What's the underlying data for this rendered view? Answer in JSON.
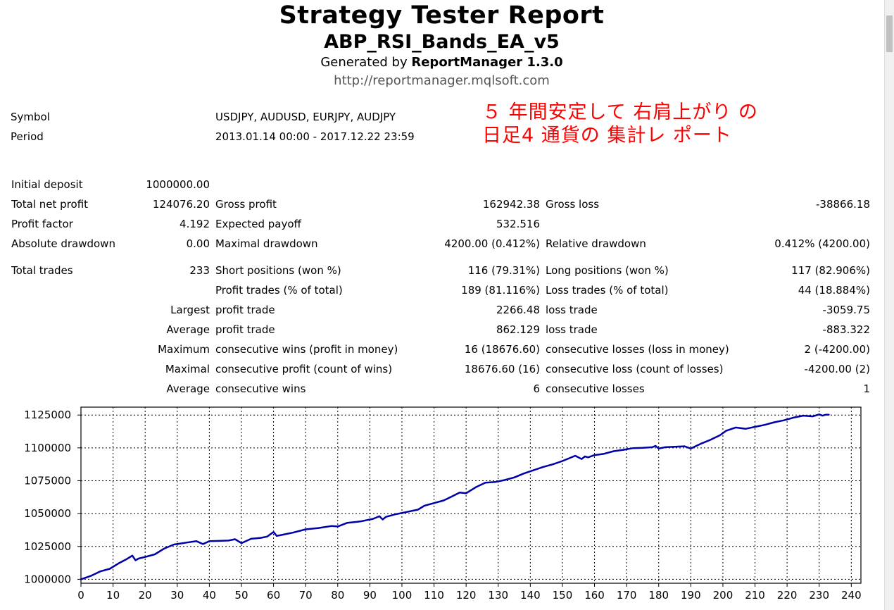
{
  "header": {
    "title": "Strategy Tester Report",
    "ea_name": "ABP_RSI_Bands_EA_v5",
    "generated_prefix": "Generated by",
    "generator": "ReportManager 1.3.0",
    "url": "http://reportmanager.mqlsoft.com"
  },
  "annotation": {
    "line1": "５ 年間安定して 右肩上がり の",
    "line2": "日足4  通貨の 集計レ ポート",
    "color": "#ff0000"
  },
  "info": {
    "symbol_label": "Symbol",
    "symbol_value": "USDJPY, AUDUSD, EURJPY, AUDJPY",
    "period_label": "Period",
    "period_value": "2013.01.14 00:00 - 2017.12.22 23:59"
  },
  "stats": {
    "initial_deposit_label": "Initial deposit",
    "initial_deposit": "1000000.00",
    "total_net_profit_label": "Total net profit",
    "total_net_profit": "124076.20",
    "gross_profit_label": "Gross profit",
    "gross_profit": "162942.38",
    "gross_loss_label": "Gross loss",
    "gross_loss": "-38866.18",
    "profit_factor_label": "Profit factor",
    "profit_factor": "4.192",
    "expected_payoff_label": "Expected payoff",
    "expected_payoff": "532.516",
    "absolute_drawdown_label": "Absolute drawdown",
    "absolute_drawdown": "0.00",
    "maximal_drawdown_label": "Maximal drawdown",
    "maximal_drawdown": "4200.00 (0.412%)",
    "relative_drawdown_label": "Relative drawdown",
    "relative_drawdown": "0.412% (4200.00)",
    "total_trades_label": "Total trades",
    "total_trades": "233",
    "short_positions_label": "Short positions (won %)",
    "short_positions": "116 (79.31%)",
    "long_positions_label": "Long positions (won %)",
    "long_positions": "117 (82.906%)",
    "profit_trades_label": "Profit trades (% of total)",
    "profit_trades": "189 (81.116%)",
    "loss_trades_label": "Loss trades (% of total)",
    "loss_trades": "44 (18.884%)",
    "largest_label": "Largest",
    "largest_profit_label": "profit trade",
    "largest_profit": "2266.48",
    "largest_loss_label": "loss trade",
    "largest_loss": "-3059.75",
    "average_label": "Average",
    "average_profit_label": "profit trade",
    "average_profit": "862.129",
    "average_loss_label": "loss trade",
    "average_loss": "-883.322",
    "maximum_label": "Maximum",
    "max_consec_wins_label": "consecutive wins (profit in money)",
    "max_consec_wins": "16 (18676.60)",
    "max_consec_losses_label": "consecutive losses (loss in money)",
    "max_consec_losses": "2 (-4200.00)",
    "maximal_label": "Maximal",
    "maximal_consec_profit_label": "consecutive profit (count of wins)",
    "maximal_consec_profit": "18676.60 (16)",
    "maximal_consec_loss_label": "consecutive loss (count of losses)",
    "maximal_consec_loss": "-4200.00 (2)",
    "average2_label": "Average",
    "avg_consec_wins_label": "consecutive wins",
    "avg_consec_wins": "6",
    "avg_consec_losses_label": "consecutive losses",
    "avg_consec_losses": "1"
  },
  "chart_data": {
    "type": "line",
    "title": "",
    "xlabel": "",
    "ylabel": "",
    "xlim": [
      0,
      243
    ],
    "ylim": [
      997000,
      1131000
    ],
    "grid": true,
    "line_color": "#0000a8",
    "x_ticks": [
      0,
      10,
      20,
      30,
      40,
      50,
      60,
      70,
      80,
      90,
      100,
      110,
      120,
      130,
      140,
      150,
      160,
      170,
      180,
      190,
      200,
      210,
      220,
      230,
      240
    ],
    "y_ticks": [
      1000000,
      1025000,
      1050000,
      1075000,
      1100000,
      1125000
    ],
    "series": [
      {
        "x": [
          0,
          3,
          6,
          9,
          12,
          14,
          16,
          17,
          18,
          20,
          23,
          26,
          29,
          33,
          36,
          38,
          40,
          43,
          46,
          48,
          50,
          53,
          56,
          58,
          60,
          61,
          63,
          66,
          70,
          74,
          78,
          80,
          83,
          87,
          91,
          93,
          94,
          95,
          98,
          101,
          105,
          107,
          110,
          113,
          116,
          118,
          120,
          123,
          126,
          129,
          132,
          135,
          138,
          141,
          144,
          147,
          150,
          154,
          156,
          157,
          158,
          160,
          163,
          166,
          169,
          172,
          175,
          178,
          179,
          180,
          182,
          185,
          188,
          190,
          193,
          196,
          199,
          201,
          204,
          207,
          210,
          213,
          216,
          219,
          222,
          225,
          228,
          230,
          231,
          232,
          233
        ],
        "y": [
          1000000,
          1002500,
          1006000,
          1008000,
          1012500,
          1015000,
          1018000,
          1014500,
          1015800,
          1017000,
          1019000,
          1023500,
          1026500,
          1028000,
          1029000,
          1026800,
          1029000,
          1029200,
          1029500,
          1030500,
          1027500,
          1030800,
          1031500,
          1032500,
          1036000,
          1033000,
          1034000,
          1035500,
          1038000,
          1039000,
          1040500,
          1040200,
          1043000,
          1044000,
          1046000,
          1048000,
          1045500,
          1047500,
          1049500,
          1051000,
          1053000,
          1056000,
          1058000,
          1060000,
          1063500,
          1066000,
          1065500,
          1070000,
          1073500,
          1074000,
          1075500,
          1077500,
          1080500,
          1083000,
          1085500,
          1087500,
          1090000,
          1094000,
          1091500,
          1093500,
          1092800,
          1094500,
          1095500,
          1097500,
          1098500,
          1099800,
          1100000,
          1100500,
          1101500,
          1099500,
          1100500,
          1100800,
          1101200,
          1099500,
          1103000,
          1106000,
          1109500,
          1113000,
          1115500,
          1114500,
          1116000,
          1117500,
          1119500,
          1121000,
          1123000,
          1124500,
          1124000,
          1125500,
          1124500,
          1125200,
          1125200
        ]
      }
    ]
  }
}
